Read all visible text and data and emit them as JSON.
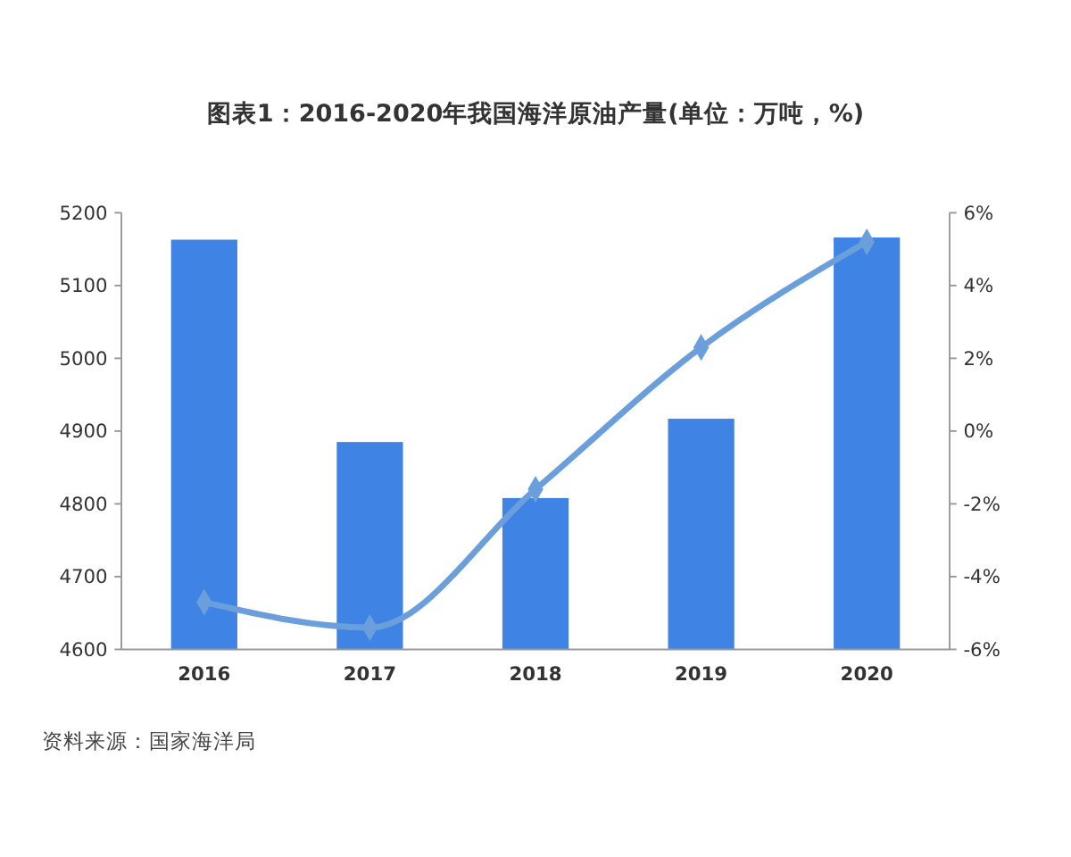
{
  "chart_data": {
    "type": "bar",
    "title": "图表1：2016-2020年我国海洋原油产量(单位：万吨，%)",
    "categories": [
      "2016",
      "2017",
      "2018",
      "2019",
      "2020"
    ],
    "series": [
      {
        "color": "#3f84e5",
        "values": [
          5163,
          4885,
          4808,
          4917,
          5166
        ]
      },
      {
        "type": "line",
        "axis": "y2",
        "color": "#6a9fdc",
        "marker": "diamond",
        "values": [
          -4.7,
          -5.4,
          -1.6,
          2.3,
          5.2
        ]
      }
    ],
    "ylim": [
      4600,
      5200
    ],
    "yticks": [
      4600,
      4700,
      4800,
      4900,
      5000,
      5100,
      5200
    ],
    "y2lim": [
      -6,
      6
    ],
    "y2ticks": [
      {
        "value": -6,
        "label": "-6%"
      },
      {
        "value": -4,
        "label": "-4%"
      },
      {
        "value": -2,
        "label": "-2%"
      },
      {
        "value": 0,
        "label": "0%"
      },
      {
        "value": 2,
        "label": "2%"
      },
      {
        "value": 4,
        "label": "4%"
      },
      {
        "value": 6,
        "label": "6%"
      }
    ],
    "annotations": [
      "资料来源：国家海洋局"
    ]
  }
}
